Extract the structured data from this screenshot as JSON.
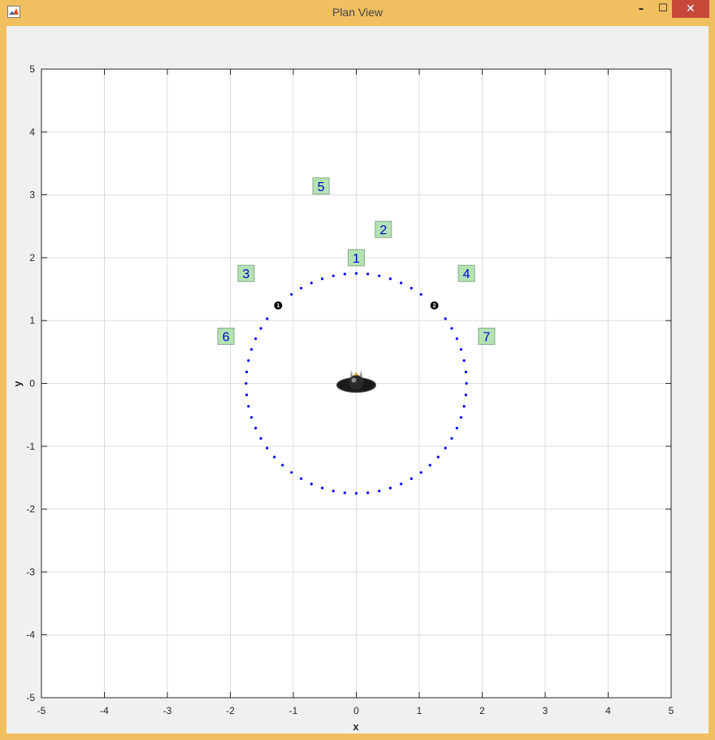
{
  "window": {
    "title": "Plan View",
    "minimize_glyph": "–",
    "maximize_glyph": "☐",
    "close_glyph": "✕"
  },
  "chart_data": {
    "type": "scatter",
    "xlabel": "x",
    "ylabel": "y",
    "xlim": [
      -5,
      5
    ],
    "ylim": [
      -5,
      5
    ],
    "xticks": [
      -5,
      -4,
      -3,
      -2,
      -1,
      0,
      1,
      2,
      3,
      4,
      5
    ],
    "yticks": [
      -5,
      -4,
      -3,
      -2,
      -1,
      0,
      1,
      2,
      3,
      4,
      5
    ],
    "grid": true,
    "trajectory": {
      "shape": "circle",
      "center": [
        0,
        0
      ],
      "radius_data_units": 1.75,
      "dot_count": 60,
      "color": "#0000ff"
    },
    "speakers": [
      {
        "label": "1",
        "x": -1.24,
        "y": 1.24
      },
      {
        "label": "2",
        "x": 1.24,
        "y": 1.24
      }
    ],
    "labels": [
      {
        "text": "1",
        "x": 0.0,
        "y": 2.0
      },
      {
        "text": "2",
        "x": 0.43,
        "y": 2.45
      },
      {
        "text": "3",
        "x": -1.75,
        "y": 1.75
      },
      {
        "text": "4",
        "x": 1.75,
        "y": 1.75
      },
      {
        "text": "5",
        "x": -0.56,
        "y": 3.14
      },
      {
        "text": "6",
        "x": -2.07,
        "y": 0.75
      },
      {
        "text": "7",
        "x": 2.07,
        "y": 0.75
      }
    ],
    "listener": {
      "x": 0,
      "y": 0
    },
    "label_box_color": "#b3e3b3"
  }
}
